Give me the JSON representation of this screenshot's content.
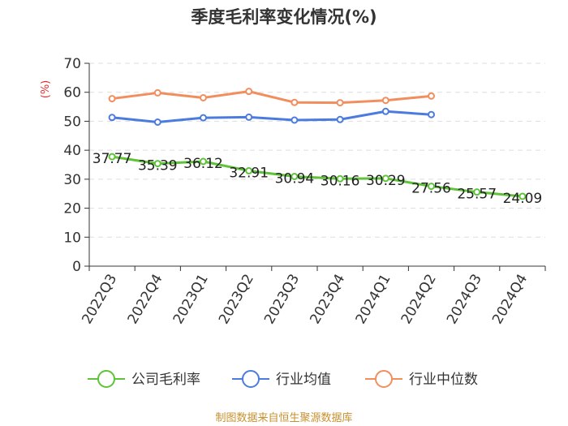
{
  "chart_data": {
    "type": "line",
    "title": "季度毛利率变化情况(%)",
    "ylabel": "(%)",
    "xlabel": "",
    "categories": [
      "2022Q3",
      "2022Q4",
      "2023Q1",
      "2023Q2",
      "2023Q3",
      "2023Q4",
      "2024Q1",
      "2024Q2",
      "2024Q3",
      "2024Q4"
    ],
    "ylim": [
      0,
      70
    ],
    "yticks": [
      0,
      10,
      20,
      30,
      40,
      50,
      60,
      70
    ],
    "grid": true,
    "legend_position": "bottom",
    "series": [
      {
        "name": "公司毛利率",
        "color": "#5fc33a",
        "values": [
          37.77,
          35.39,
          36.12,
          32.91,
          30.94,
          30.16,
          30.29,
          27.56,
          25.57,
          24.09
        ],
        "labels": [
          "37.77",
          "35.39",
          "36.12",
          "32.91",
          "30.94",
          "30.16",
          "30.29",
          "27.56",
          "25.57",
          "24.09"
        ]
      },
      {
        "name": "行业均值",
        "color": "#4b7bdf",
        "values": [
          51.3,
          49.7,
          51.2,
          51.4,
          50.4,
          50.6,
          53.4,
          52.3,
          null,
          null
        ]
      },
      {
        "name": "行业中位数",
        "color": "#f28e5e",
        "values": [
          57.8,
          59.8,
          58.1,
          60.3,
          56.5,
          56.4,
          57.2,
          58.7,
          null,
          null
        ]
      }
    ]
  },
  "source": "制图数据来自恒生聚源数据库"
}
